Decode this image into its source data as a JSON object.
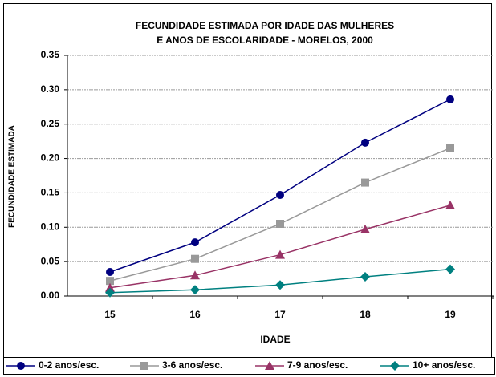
{
  "chart_data": {
    "type": "line",
    "title": [
      "FECUNDIDADE ESTIMADA POR IDADE DAS MULHERES",
      "E ANOS DE ESCOLARIDADE - MORELOS, 2000"
    ],
    "x_label": "IDADE",
    "y_label": "FECUNDIDADE ESTIMADA",
    "categories": [
      "15",
      "16",
      "17",
      "18",
      "19"
    ],
    "series": [
      {
        "name": "0-2 anos/esc.",
        "color": "#000080",
        "marker": "circle",
        "values": [
          0.035,
          0.078,
          0.147,
          0.223,
          0.286
        ]
      },
      {
        "name": "3-6 anos/esc.",
        "color": "#999999",
        "marker": "square",
        "values": [
          0.022,
          0.054,
          0.105,
          0.165,
          0.215
        ]
      },
      {
        "name": "7-9 anos/esc.",
        "color": "#993366",
        "marker": "triangle",
        "values": [
          0.012,
          0.03,
          0.06,
          0.097,
          0.132
        ]
      },
      {
        "name": "10+ anos/esc.",
        "color": "#008080",
        "marker": "diamond",
        "values": [
          0.005,
          0.009,
          0.016,
          0.028,
          0.039
        ]
      }
    ],
    "ylim": [
      0,
      0.35
    ],
    "yticks": [
      {
        "value": 0,
        "label": "0.00"
      },
      {
        "value": 0.05,
        "label": "0.05"
      },
      {
        "value": 0.1,
        "label": "0.10"
      },
      {
        "value": 0.15,
        "label": "0.15"
      },
      {
        "value": 0.2,
        "label": "0.20"
      },
      {
        "value": 0.25,
        "label": "0.25"
      },
      {
        "value": 0.3,
        "label": "0.30"
      },
      {
        "value": 0.35,
        "label": "0.35"
      }
    ],
    "grid": true,
    "legend": "bottom"
  }
}
